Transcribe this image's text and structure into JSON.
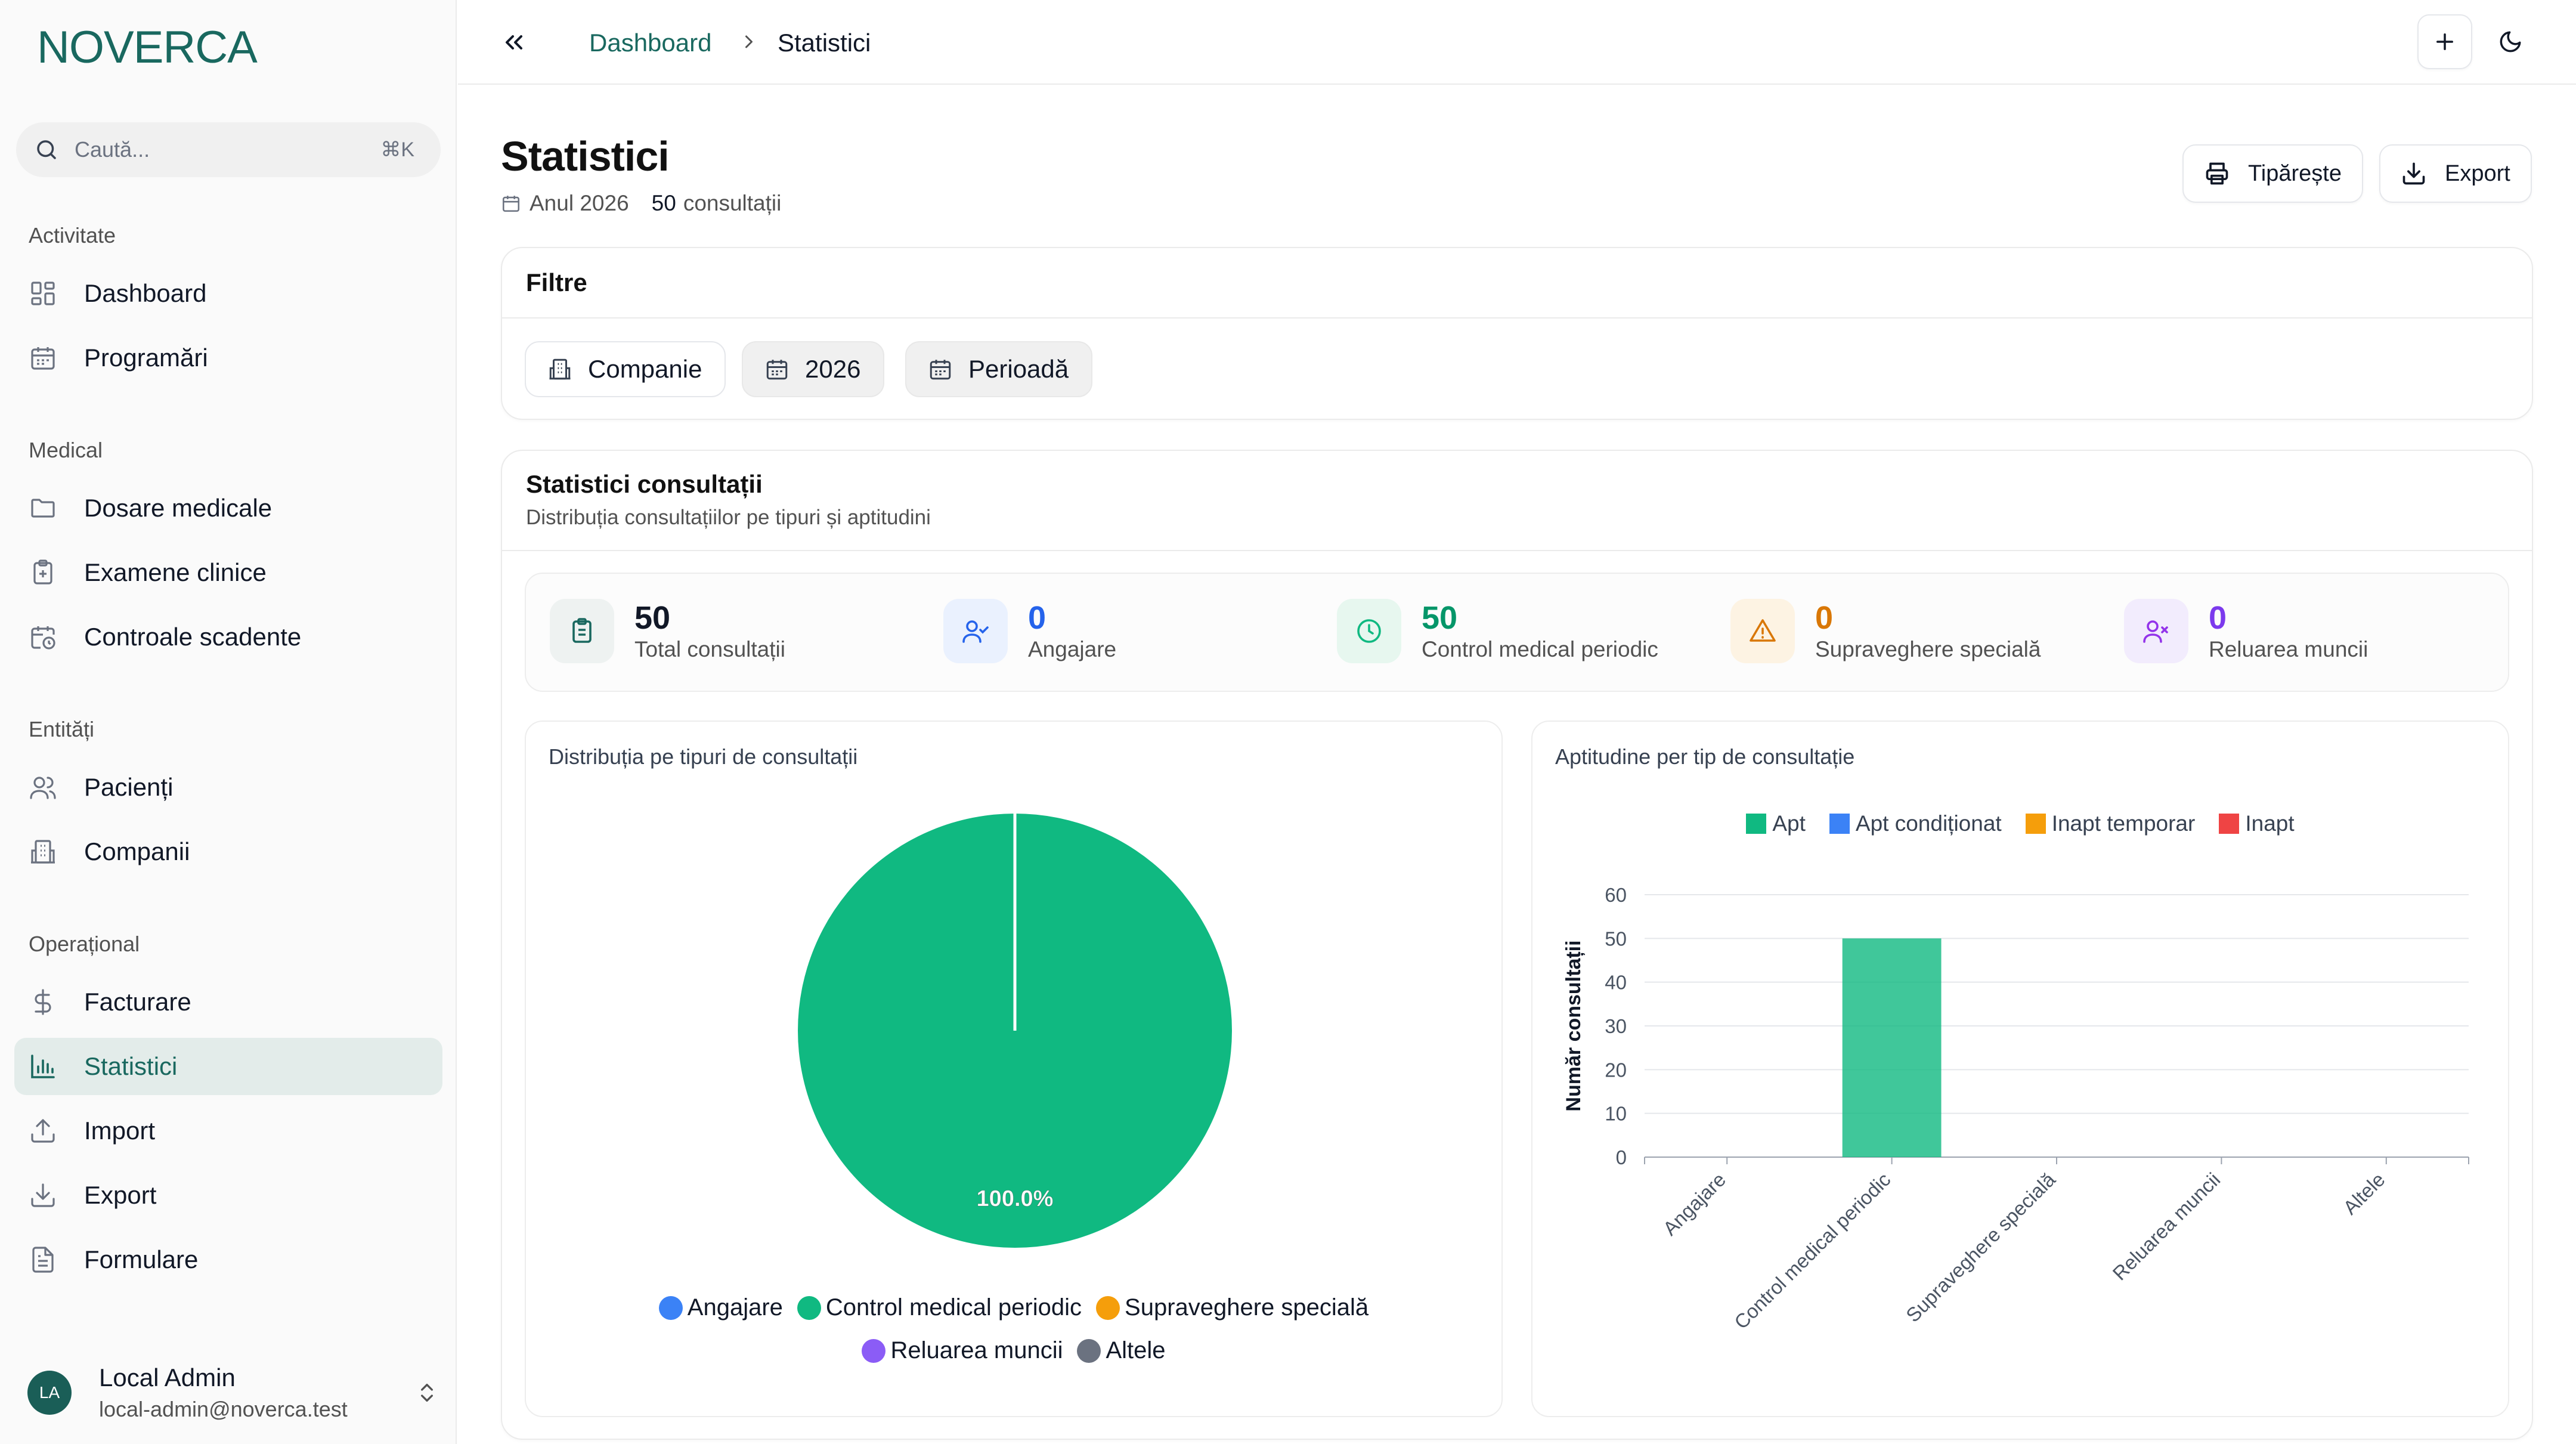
{
  "app": {
    "logo": "NOVERCA"
  },
  "search": {
    "placeholder": "Caută...",
    "shortcut": "⌘K"
  },
  "sidebar": {
    "groups": [
      {
        "label": "Activitate",
        "items": [
          {
            "label": "Dashboard",
            "icon": "layout-grid-icon"
          },
          {
            "label": "Programări",
            "icon": "calendar-icon"
          }
        ]
      },
      {
        "label": "Medical",
        "items": [
          {
            "label": "Dosare medicale",
            "icon": "folder-icon"
          },
          {
            "label": "Examene clinice",
            "icon": "clipboard-plus-icon"
          },
          {
            "label": "Controale scadente",
            "icon": "calendar-clock-icon"
          }
        ]
      },
      {
        "label": "Entități",
        "items": [
          {
            "label": "Pacienți",
            "icon": "users-icon"
          },
          {
            "label": "Companii",
            "icon": "building-icon"
          }
        ]
      },
      {
        "label": "Operațional",
        "items": [
          {
            "label": "Facturare",
            "icon": "dollar-icon"
          },
          {
            "label": "Statistici",
            "icon": "bar-chart-icon",
            "active": true
          },
          {
            "label": "Import",
            "icon": "upload-icon"
          },
          {
            "label": "Export",
            "icon": "download-icon"
          },
          {
            "label": "Formulare",
            "icon": "file-text-icon"
          }
        ]
      }
    ]
  },
  "user": {
    "initials": "LA",
    "name": "Local Admin",
    "email": "local-admin@noverca.test"
  },
  "breadcrumb": {
    "parent": "Dashboard",
    "current": "Statistici"
  },
  "page": {
    "title": "Statistici",
    "year_label": "Anul 2026",
    "count": "50",
    "count_label": "consultații",
    "print_label": "Tipărește",
    "export_label": "Export"
  },
  "filters": {
    "title": "Filtre",
    "company": "Companie",
    "year": "2026",
    "period": "Perioadă"
  },
  "stats": {
    "title": "Statistici consultații",
    "subtitle": "Distribuția consultațiilor pe tipuri și aptitudini",
    "kpis": [
      {
        "value": "50",
        "label": "Total consultații",
        "color": "#111827",
        "bg": "#eef2f1",
        "icon_color": "#19685f",
        "icon": "clipboard-list-icon"
      },
      {
        "value": "0",
        "label": "Angajare",
        "color": "#2563eb",
        "bg": "#eaf1fe",
        "icon_color": "#2563eb",
        "icon": "user-check-icon"
      },
      {
        "value": "50",
        "label": "Control medical periodic",
        "color": "#059669",
        "bg": "#e7f7ef",
        "icon_color": "#10b981",
        "icon": "clock-icon"
      },
      {
        "value": "0",
        "label": "Supraveghere specială",
        "color": "#d97706",
        "bg": "#fdf3e3",
        "icon_color": "#d97706",
        "icon": "alert-triangle-icon"
      },
      {
        "value": "0",
        "label": "Reluarea muncii",
        "color": "#7c3aed",
        "bg": "#f2ecfd",
        "icon_color": "#9333ea",
        "icon": "user-x-icon"
      }
    ]
  },
  "chart_data": [
    {
      "type": "pie",
      "title": "Distribuția pe tipuri de consultații",
      "labels": [
        "Angajare",
        "Control medical periodic",
        "Supraveghere specială",
        "Reluarea muncii",
        "Altele"
      ],
      "values": [
        0,
        50,
        0,
        0,
        0
      ],
      "colors": [
        "#3b82f6",
        "#10b981",
        "#f59e0b",
        "#8b5cf6",
        "#6b7280"
      ],
      "data_labels": [
        "100.0%"
      ],
      "legend": "bottom"
    },
    {
      "type": "bar",
      "title": "Aptitudine per tip de consultație",
      "categories": [
        "Angajare",
        "Control medical periodic",
        "Supraveghere specială",
        "Reluarea muncii",
        "Altele"
      ],
      "series": [
        {
          "name": "Apt",
          "color": "#10b981",
          "values": [
            0,
            50,
            0,
            0,
            0
          ]
        },
        {
          "name": "Apt condiționat",
          "color": "#3b82f6",
          "values": [
            0,
            0,
            0,
            0,
            0
          ]
        },
        {
          "name": "Inapt temporar",
          "color": "#f59e0b",
          "values": [
            0,
            0,
            0,
            0,
            0
          ]
        },
        {
          "name": "Inapt",
          "color": "#ef4444",
          "values": [
            0,
            0,
            0,
            0,
            0
          ]
        }
      ],
      "stacked": true,
      "ylabel": "Număr consultații",
      "xlabel": "",
      "ylim": [
        0,
        60
      ],
      "yticks": [
        0,
        10,
        20,
        30,
        40,
        50,
        60
      ],
      "grid": true,
      "legend": "top"
    }
  ]
}
